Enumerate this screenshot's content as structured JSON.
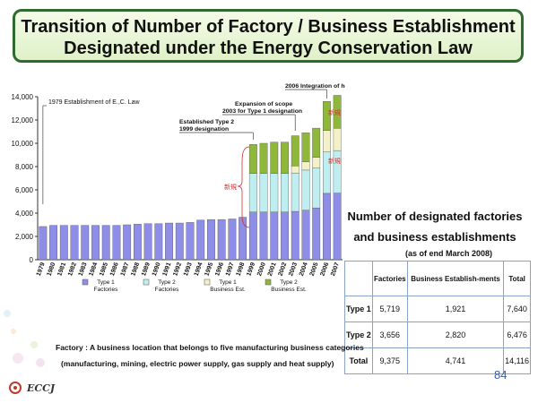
{
  "title": {
    "line1": "Transition of Number of Factory / Business Establishment",
    "line2": "Designated under the Energy Conservation Law"
  },
  "chart_data": {
    "type": "bar",
    "stacked": true,
    "categories": [
      "1979",
      "1980",
      "1981",
      "1982",
      "1983",
      "1984",
      "1985",
      "1986",
      "1987",
      "1988",
      "1989",
      "1990",
      "1991",
      "1992",
      "1993",
      "1994",
      "1995",
      "1996",
      "1997",
      "1998",
      "1999",
      "2000",
      "2001",
      "2002",
      "2003",
      "2004",
      "2005",
      "2006",
      "2007"
    ],
    "series": [
      {
        "name": "Type 1 Factories",
        "color": "#8e8ee8",
        "values": [
          2850,
          2950,
          2950,
          2950,
          2950,
          2950,
          2950,
          2950,
          3000,
          3050,
          3100,
          3100,
          3150,
          3150,
          3200,
          3400,
          3450,
          3450,
          3500,
          3650,
          4100,
          4100,
          4100,
          4100,
          4150,
          4250,
          4450,
          5700,
          5719
        ]
      },
      {
        "name": "Type 2 Factories",
        "color": "#bfeef0",
        "values": [
          0,
          0,
          0,
          0,
          0,
          0,
          0,
          0,
          0,
          0,
          0,
          0,
          0,
          0,
          0,
          0,
          0,
          0,
          0,
          0,
          3300,
          3300,
          3300,
          3300,
          3300,
          3450,
          3450,
          3550,
          3656
        ]
      },
      {
        "name": "Type 1 Business Est.",
        "color": "#f4f0c8",
        "values": [
          0,
          0,
          0,
          0,
          0,
          0,
          0,
          0,
          0,
          0,
          0,
          0,
          0,
          0,
          0,
          0,
          0,
          0,
          0,
          0,
          0,
          0,
          0,
          0,
          600,
          700,
          900,
          1850,
          1921
        ]
      },
      {
        "name": "Type 2 Business Est.",
        "color": "#8fb83a",
        "values": [
          0,
          0,
          0,
          0,
          0,
          0,
          0,
          0,
          0,
          0,
          0,
          0,
          0,
          0,
          0,
          0,
          0,
          0,
          0,
          0,
          2500,
          2600,
          2700,
          2700,
          2600,
          2500,
          2500,
          2500,
          2820
        ]
      }
    ],
    "ylim": [
      0,
      14000
    ],
    "yticks": [
      "0",
      "2,000",
      "4,000",
      "6,000",
      "8,000",
      "10,000",
      "12,000",
      "14,000"
    ],
    "legend_position": "bottom",
    "annotations": [
      {
        "year": "1979",
        "text": "Establishment of E.,C. Law"
      },
      {
        "year": "1999",
        "text": "Established Type 2 designation"
      },
      {
        "year": "2003",
        "text": "Expansion of scope for Type 1 designation"
      },
      {
        "year": "2006",
        "text": "Integration of heat & electric power"
      }
    ],
    "japanese_marks": [
      "新規",
      "新規",
      "新規"
    ]
  },
  "side": {
    "heading1": "Number of designated factories",
    "heading2": "and business establishments",
    "as_of": "(as of end March 2008)"
  },
  "table": {
    "headers": [
      "",
      "Factories",
      "Business Establish-ments",
      "Total"
    ],
    "rows": [
      [
        "Type 1",
        "5,719",
        "1,921",
        "7,640"
      ],
      [
        "Type 2",
        "3,656",
        "2,820",
        "6,476"
      ],
      [
        "Total",
        "9,375",
        "4,741",
        "14,116"
      ]
    ]
  },
  "footnote": {
    "line1": "Factory : A business location that belongs to five manufacturing business categories",
    "line2": "(manufacturing, mining, electric power supply, gas supply and heat supply)"
  },
  "page_number": "84",
  "logo_text": "ECCJ"
}
